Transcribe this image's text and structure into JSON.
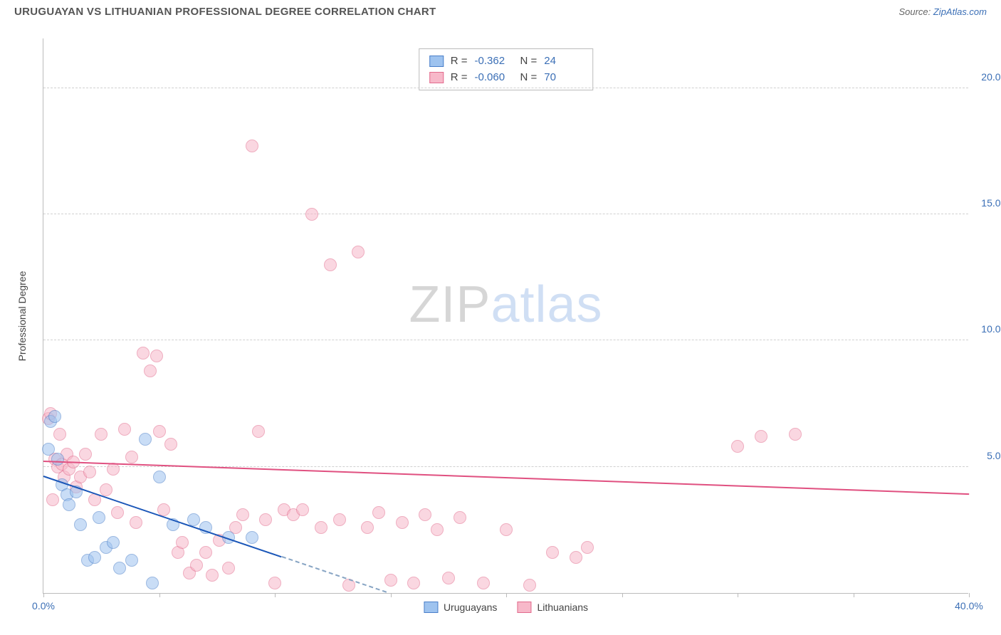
{
  "title": "URUGUAYAN VS LITHUANIAN PROFESSIONAL DEGREE CORRELATION CHART",
  "source_prefix": "Source: ",
  "source_link": "ZipAtlas.com",
  "y_axis_title": "Professional Degree",
  "watermark_a": "ZIP",
  "watermark_b": "atlas",
  "chart": {
    "type": "scatter",
    "xlim": [
      0,
      40
    ],
    "ylim": [
      0,
      22
    ],
    "xticks": [
      0,
      5,
      10,
      15,
      20,
      25,
      30,
      35,
      40
    ],
    "xtick_labels": {
      "0": "0.0%",
      "40": "40.0%"
    },
    "yticks": [
      5,
      10,
      15,
      20
    ],
    "ytick_labels": {
      "5": "5.0%",
      "10": "10.0%",
      "15": "15.0%",
      "20": "20.0%"
    },
    "grid_color": "#d0d0d0",
    "axis_color": "#bbbbbb",
    "background_color": "#ffffff",
    "label_color": "#3b6fb6",
    "marker_radius": 9,
    "marker_opacity": 0.55,
    "series": [
      {
        "name": "Uruguayans",
        "fill": "#9ec3ef",
        "stroke": "#4a7fc9",
        "trend_color": "#1a56b8",
        "trend_dash_color": "#88a5c4",
        "R": "-0.362",
        "N": "24",
        "trend": {
          "x1": 0,
          "y1": 4.6,
          "x2": 10.3,
          "y2": 1.4
        },
        "points": [
          [
            0.2,
            5.7
          ],
          [
            0.3,
            6.8
          ],
          [
            0.5,
            7.0
          ],
          [
            0.6,
            5.3
          ],
          [
            0.8,
            4.3
          ],
          [
            1.0,
            3.9
          ],
          [
            1.1,
            3.5
          ],
          [
            1.4,
            4.0
          ],
          [
            1.6,
            2.7
          ],
          [
            1.9,
            1.3
          ],
          [
            2.2,
            1.4
          ],
          [
            2.4,
            3.0
          ],
          [
            2.7,
            1.8
          ],
          [
            3.0,
            2.0
          ],
          [
            3.3,
            1.0
          ],
          [
            3.8,
            1.3
          ],
          [
            4.4,
            6.1
          ],
          [
            4.7,
            0.4
          ],
          [
            5.0,
            4.6
          ],
          [
            5.6,
            2.7
          ],
          [
            6.5,
            2.9
          ],
          [
            7.0,
            2.6
          ],
          [
            8.0,
            2.2
          ],
          [
            9.0,
            2.2
          ]
        ]
      },
      {
        "name": "Lithuanians",
        "fill": "#f7b8c9",
        "stroke": "#e26b8d",
        "trend_color": "#e05080",
        "R": "-0.060",
        "N": "70",
        "trend": {
          "x1": 0,
          "y1": 5.2,
          "x2": 40,
          "y2": 3.9
        },
        "points": [
          [
            0.2,
            6.9
          ],
          [
            0.3,
            7.1
          ],
          [
            0.4,
            3.7
          ],
          [
            0.5,
            5.3
          ],
          [
            0.6,
            5.0
          ],
          [
            0.7,
            6.3
          ],
          [
            0.8,
            5.1
          ],
          [
            0.9,
            4.6
          ],
          [
            1.0,
            5.5
          ],
          [
            1.1,
            4.9
          ],
          [
            1.3,
            5.2
          ],
          [
            1.4,
            4.2
          ],
          [
            1.6,
            4.6
          ],
          [
            1.8,
            5.5
          ],
          [
            2.0,
            4.8
          ],
          [
            2.2,
            3.7
          ],
          [
            2.5,
            6.3
          ],
          [
            2.7,
            4.1
          ],
          [
            3.0,
            4.9
          ],
          [
            3.2,
            3.2
          ],
          [
            3.5,
            6.5
          ],
          [
            3.8,
            5.4
          ],
          [
            4.0,
            2.8
          ],
          [
            4.3,
            9.5
          ],
          [
            4.6,
            8.8
          ],
          [
            4.9,
            9.4
          ],
          [
            5.2,
            3.3
          ],
          [
            5.5,
            5.9
          ],
          [
            5.8,
            1.6
          ],
          [
            6.0,
            2.0
          ],
          [
            6.3,
            0.8
          ],
          [
            6.6,
            1.1
          ],
          [
            7.0,
            1.6
          ],
          [
            7.3,
            0.7
          ],
          [
            7.6,
            2.1
          ],
          [
            8.0,
            1.0
          ],
          [
            8.3,
            2.6
          ],
          [
            8.6,
            3.1
          ],
          [
            9.0,
            17.7
          ],
          [
            9.3,
            6.4
          ],
          [
            9.6,
            2.9
          ],
          [
            10.0,
            0.4
          ],
          [
            10.4,
            3.3
          ],
          [
            10.8,
            3.1
          ],
          [
            11.2,
            3.3
          ],
          [
            11.6,
            15.0
          ],
          [
            12.0,
            2.6
          ],
          [
            12.4,
            13.0
          ],
          [
            12.8,
            2.9
          ],
          [
            13.2,
            0.3
          ],
          [
            13.6,
            13.5
          ],
          [
            14.0,
            2.6
          ],
          [
            14.5,
            3.2
          ],
          [
            15.0,
            0.5
          ],
          [
            15.5,
            2.8
          ],
          [
            16.0,
            0.4
          ],
          [
            16.5,
            3.1
          ],
          [
            17.0,
            2.5
          ],
          [
            17.5,
            0.6
          ],
          [
            18.0,
            3.0
          ],
          [
            19.0,
            0.4
          ],
          [
            20.0,
            2.5
          ],
          [
            21.0,
            0.3
          ],
          [
            22.0,
            1.6
          ],
          [
            23.0,
            1.4
          ],
          [
            23.5,
            1.8
          ],
          [
            30.0,
            5.8
          ],
          [
            31.0,
            6.2
          ],
          [
            32.5,
            6.3
          ],
          [
            5.0,
            6.4
          ]
        ]
      }
    ],
    "legend": {
      "stats_labels": {
        "R": "R =",
        "N": "N ="
      }
    }
  }
}
